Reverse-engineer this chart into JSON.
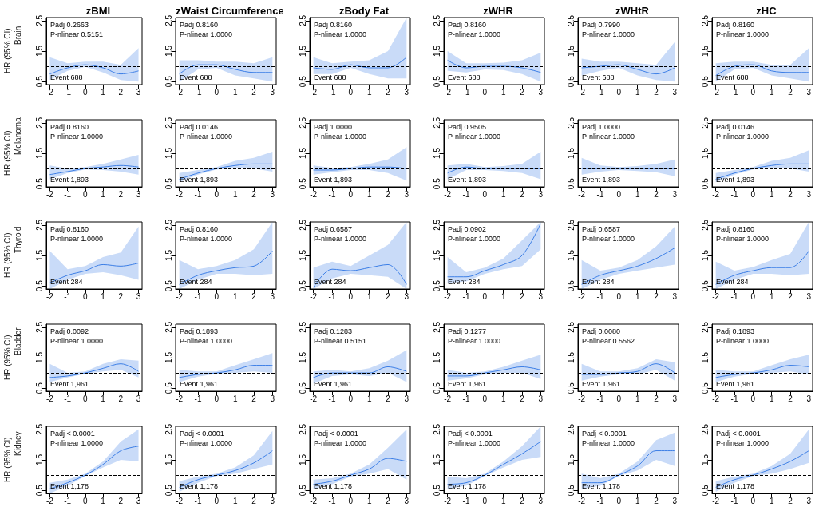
{
  "chart_data": [
    {
      "type": "line",
      "title": "zBMI",
      "ylabel": "HR (95% CI)",
      "subtitle": "Brain",
      "x": [
        -2,
        -1,
        0,
        1,
        2,
        3
      ],
      "series": [
        {
          "color": "#3d7fe6",
          "values": [
            0.75,
            0.95,
            1.05,
            0.95,
            0.75,
            0.85
          ],
          "lower": [
            0.55,
            0.85,
            0.98,
            0.8,
            0.55,
            0.5
          ],
          "upper": [
            1.3,
            1.1,
            1.15,
            1.15,
            1.05,
            1.6
          ]
        }
      ],
      "xlim": [
        -2.2,
        3.2
      ],
      "xticks": [
        -2,
        -1,
        0,
        1,
        2,
        3
      ],
      "ylim": [
        0.4,
        2.6
      ],
      "yticks": [
        0.5,
        1.5,
        2.5
      ],
      "ref_lines": [
        {
          "axis": "y",
          "value": 1,
          "line_style": "dashed",
          "color": "#000000"
        }
      ],
      "annotations": [
        "Padj 0.2663",
        "P-nlinear 0.5151",
        "Event 688"
      ]
    },
    {
      "type": "line",
      "title": "zWaist Circumference",
      "x": [
        -2,
        -1,
        0,
        1,
        2,
        3
      ],
      "series": [
        {
          "color": "#3d7fe6",
          "values": [
            0.75,
            1.05,
            1.05,
            0.9,
            0.8,
            0.8
          ],
          "lower": [
            0.5,
            0.9,
            0.95,
            0.7,
            0.6,
            0.5
          ],
          "upper": [
            1.2,
            1.2,
            1.15,
            1.15,
            1.1,
            1.3
          ]
        }
      ],
      "xlim": [
        -2.2,
        3.2
      ],
      "xticks": [
        -2,
        -1,
        0,
        1,
        2,
        3
      ],
      "ylim": [
        0.4,
        2.6
      ],
      "yticks": [
        0.5,
        1.5,
        2.5
      ],
      "ref_lines": [
        {
          "axis": "y",
          "value": 1,
          "line_style": "dashed",
          "color": "#000000"
        }
      ],
      "annotations": [
        "Padj 0.8160",
        "P-nlinear 1.0000",
        "Event 688"
      ]
    },
    {
      "type": "line",
      "title": "zBody Fat",
      "x": [
        -2,
        -1,
        0,
        1,
        2,
        3
      ],
      "series": [
        {
          "color": "#3d7fe6",
          "values": [
            0.95,
            0.9,
            1.05,
            0.95,
            0.95,
            1.3
          ],
          "lower": [
            0.75,
            0.75,
            0.95,
            0.75,
            0.6,
            0.6
          ],
          "upper": [
            1.3,
            1.1,
            1.15,
            1.2,
            1.5,
            2.6
          ]
        }
      ],
      "xlim": [
        -2.2,
        3.2
      ],
      "xticks": [
        -2,
        -1,
        0,
        1,
        2,
        3
      ],
      "ylim": [
        0.4,
        2.6
      ],
      "yticks": [
        0.5,
        1.5,
        2.5
      ],
      "ref_lines": [
        {
          "axis": "y",
          "value": 1,
          "line_style": "dashed",
          "color": "#000000"
        }
      ],
      "annotations": [
        "Padj 0.8160",
        "P-nlinear 1.0000",
        "Event 688"
      ]
    },
    {
      "type": "line",
      "title": "zWHR",
      "x": [
        -2,
        -1,
        0,
        1,
        2,
        3
      ],
      "series": [
        {
          "color": "#3d7fe6",
          "values": [
            1.2,
            0.95,
            1.0,
            1.0,
            0.95,
            0.8
          ],
          "lower": [
            0.85,
            0.8,
            0.9,
            0.88,
            0.75,
            0.5
          ],
          "upper": [
            1.5,
            1.1,
            1.1,
            1.12,
            1.2,
            1.45
          ]
        }
      ],
      "xlim": [
        -2.2,
        3.2
      ],
      "xticks": [
        -2,
        -1,
        0,
        1,
        2,
        3
      ],
      "ylim": [
        0.4,
        2.6
      ],
      "yticks": [
        0.5,
        1.5,
        2.5
      ],
      "ref_lines": [
        {
          "axis": "y",
          "value": 1,
          "line_style": "dashed",
          "color": "#000000"
        }
      ],
      "annotations": [
        "Padj 0.8160",
        "P-nlinear 1.0000",
        "Event 688"
      ]
    },
    {
      "type": "line",
      "title": "zWHtR",
      "x": [
        -2,
        -1,
        0,
        1,
        2,
        3
      ],
      "series": [
        {
          "color": "#3d7fe6",
          "values": [
            0.95,
            1.0,
            1.05,
            0.9,
            0.75,
            0.95
          ],
          "lower": [
            0.7,
            0.85,
            0.95,
            0.7,
            0.55,
            0.5
          ],
          "upper": [
            1.25,
            1.15,
            1.15,
            1.1,
            1.05,
            1.8
          ]
        }
      ],
      "xlim": [
        -2.2,
        3.2
      ],
      "xticks": [
        -2,
        -1,
        0,
        1,
        2,
        3
      ],
      "ylim": [
        0.4,
        2.6
      ],
      "yticks": [
        0.5,
        1.5,
        2.5
      ],
      "ref_lines": [
        {
          "axis": "y",
          "value": 1,
          "line_style": "dashed",
          "color": "#000000"
        }
      ],
      "annotations": [
        "Padj 0.7990",
        "P-nlinear 1.0000",
        "Event 688"
      ]
    },
    {
      "type": "line",
      "title": "zHC",
      "x": [
        -2,
        -1,
        0,
        1,
        2,
        3
      ],
      "series": [
        {
          "color": "#3d7fe6",
          "values": [
            0.7,
            1.0,
            1.05,
            0.85,
            0.8,
            0.8
          ],
          "lower": [
            0.5,
            0.9,
            0.95,
            0.7,
            0.6,
            0.5
          ],
          "upper": [
            1.1,
            1.15,
            1.15,
            1.05,
            1.05,
            1.6
          ]
        }
      ],
      "xlim": [
        -2.2,
        3.2
      ],
      "xticks": [
        -2,
        -1,
        0,
        1,
        2,
        3
      ],
      "ylim": [
        0.4,
        2.6
      ],
      "yticks": [
        0.5,
        1.5,
        2.5
      ],
      "ref_lines": [
        {
          "axis": "y",
          "value": 1,
          "line_style": "dashed",
          "color": "#000000"
        }
      ],
      "annotations": [
        "Padj 0.8160",
        "P-nlinear 1.0000",
        "Event 688"
      ]
    },
    {
      "type": "line",
      "ylabel": "HR (95% CI)",
      "subtitle": "Melanoma",
      "x": [
        -2,
        -1,
        0,
        1,
        2,
        3
      ],
      "series": [
        {
          "color": "#3d7fe6",
          "values": [
            0.8,
            0.9,
            1.0,
            1.05,
            1.1,
            1.05
          ],
          "lower": [
            0.65,
            0.85,
            0.97,
            0.95,
            0.9,
            0.8
          ],
          "upper": [
            1.1,
            1.0,
            1.05,
            1.15,
            1.3,
            1.45
          ]
        }
      ],
      "xlim": [
        -2.2,
        3.2
      ],
      "xticks": [
        -2,
        -1,
        0,
        1,
        2,
        3
      ],
      "ylim": [
        0.4,
        2.6
      ],
      "yticks": [
        0.5,
        1.5,
        2.5
      ],
      "ref_lines": [
        {
          "axis": "y",
          "value": 1,
          "line_style": "dashed",
          "color": "#000000"
        }
      ],
      "annotations": [
        "Padj 0.8160",
        "P-nlinear 1.0000",
        "Event 1,893"
      ]
    },
    {
      "type": "line",
      "x": [
        -2,
        -1,
        0,
        1,
        2,
        3
      ],
      "series": [
        {
          "color": "#3d7fe6",
          "values": [
            0.65,
            0.85,
            1.0,
            1.1,
            1.15,
            1.15
          ],
          "lower": [
            0.55,
            0.8,
            0.97,
            1.0,
            1.0,
            0.9
          ],
          "upper": [
            0.85,
            0.95,
            1.05,
            1.25,
            1.35,
            1.55
          ]
        }
      ],
      "xlim": [
        -2.2,
        3.2
      ],
      "xticks": [
        -2,
        -1,
        0,
        1,
        2,
        3
      ],
      "ylim": [
        0.4,
        2.6
      ],
      "yticks": [
        0.5,
        1.5,
        2.5
      ],
      "ref_lines": [
        {
          "axis": "y",
          "value": 1,
          "line_style": "dashed",
          "color": "#000000"
        }
      ],
      "annotations": [
        "Padj 0.0146",
        "P-nlinear 1.0000",
        "Event 1,893"
      ]
    },
    {
      "type": "line",
      "x": [
        -2,
        -1,
        0,
        1,
        2,
        3
      ],
      "series": [
        {
          "color": "#3d7fe6",
          "values": [
            0.95,
            0.95,
            1.0,
            1.05,
            1.05,
            1.0
          ],
          "lower": [
            0.8,
            0.88,
            0.95,
            0.95,
            0.85,
            0.6
          ],
          "upper": [
            1.1,
            1.02,
            1.05,
            1.15,
            1.3,
            1.7
          ]
        }
      ],
      "xlim": [
        -2.2,
        3.2
      ],
      "xticks": [
        -2,
        -1,
        0,
        1,
        2,
        3
      ],
      "ylim": [
        0.4,
        2.6
      ],
      "yticks": [
        0.5,
        1.5,
        2.5
      ],
      "ref_lines": [
        {
          "axis": "y",
          "value": 1,
          "line_style": "dashed",
          "color": "#000000"
        }
      ],
      "annotations": [
        "Padj 1.0000",
        "P-nlinear 1.0000",
        "Event 1,893"
      ]
    },
    {
      "type": "line",
      "x": [
        -2,
        -1,
        0,
        1,
        2,
        3
      ],
      "series": [
        {
          "color": "#3d7fe6",
          "values": [
            0.85,
            1.05,
            1.0,
            1.0,
            1.0,
            1.0
          ],
          "lower": [
            0.65,
            0.95,
            0.95,
            0.92,
            0.85,
            0.65
          ],
          "upper": [
            1.1,
            1.15,
            1.05,
            1.08,
            1.15,
            1.55
          ]
        }
      ],
      "xlim": [
        -2.2,
        3.2
      ],
      "xticks": [
        -2,
        -1,
        0,
        1,
        2,
        3
      ],
      "ylim": [
        0.4,
        2.6
      ],
      "yticks": [
        0.5,
        1.5,
        2.5
      ],
      "ref_lines": [
        {
          "axis": "y",
          "value": 1,
          "line_style": "dashed",
          "color": "#000000"
        }
      ],
      "annotations": [
        "Padj 0.9505",
        "P-nlinear 1.0000",
        "Event 1,893"
      ]
    },
    {
      "type": "line",
      "x": [
        -2,
        -1,
        0,
        1,
        2,
        3
      ],
      "series": [
        {
          "color": "#3d7fe6",
          "values": [
            1.0,
            1.0,
            1.0,
            1.0,
            1.0,
            1.0
          ],
          "lower": [
            0.8,
            0.9,
            0.95,
            0.92,
            0.88,
            0.75
          ],
          "upper": [
            1.35,
            1.1,
            1.05,
            1.08,
            1.15,
            1.3
          ]
        }
      ],
      "xlim": [
        -2.2,
        3.2
      ],
      "xticks": [
        -2,
        -1,
        0,
        1,
        2,
        3
      ],
      "ylim": [
        0.4,
        2.6
      ],
      "yticks": [
        0.5,
        1.5,
        2.5
      ],
      "ref_lines": [
        {
          "axis": "y",
          "value": 1,
          "line_style": "dashed",
          "color": "#000000"
        }
      ],
      "annotations": [
        "Padj 1.0000",
        "P-nlinear 1.0000",
        "Event 1,893"
      ]
    },
    {
      "type": "line",
      "x": [
        -2,
        -1,
        0,
        1,
        2,
        3
      ],
      "series": [
        {
          "color": "#3d7fe6",
          "values": [
            0.65,
            0.85,
            1.0,
            1.1,
            1.15,
            1.15
          ],
          "lower": [
            0.55,
            0.8,
            0.97,
            1.0,
            1.0,
            0.9
          ],
          "upper": [
            0.85,
            0.95,
            1.05,
            1.25,
            1.35,
            1.6
          ]
        }
      ],
      "xlim": [
        -2.2,
        3.2
      ],
      "xticks": [
        -2,
        -1,
        0,
        1,
        2,
        3
      ],
      "ylim": [
        0.4,
        2.6
      ],
      "yticks": [
        0.5,
        1.5,
        2.5
      ],
      "ref_lines": [
        {
          "axis": "y",
          "value": 1,
          "line_style": "dashed",
          "color": "#000000"
        }
      ],
      "annotations": [
        "Padj 0.0146",
        "P-nlinear 1.0000",
        "Event 1,893"
      ]
    },
    {
      "type": "line",
      "ylabel": "HR (95% CI)",
      "subtitle": "Thyroid",
      "x": [
        -2,
        -1,
        0,
        1,
        2,
        3
      ],
      "series": [
        {
          "color": "#3d7fe6",
          "values": [
            0.6,
            0.85,
            1.0,
            1.2,
            1.15,
            1.25
          ],
          "lower": [
            0.4,
            0.7,
            0.9,
            0.95,
            0.85,
            0.7
          ],
          "upper": [
            1.65,
            1.05,
            1.15,
            1.45,
            1.6,
            2.45
          ]
        }
      ],
      "xlim": [
        -2.2,
        3.2
      ],
      "xticks": [
        -2,
        -1,
        0,
        1,
        2,
        3
      ],
      "ylim": [
        0.4,
        2.6
      ],
      "yticks": [
        0.5,
        1.5,
        2.5
      ],
      "ref_lines": [
        {
          "axis": "y",
          "value": 1,
          "line_style": "dashed",
          "color": "#000000"
        }
      ],
      "annotations": [
        "Padj 0.8160",
        "P-nlinear 1.0000",
        "Event 284"
      ]
    },
    {
      "type": "line",
      "x": [
        -2,
        -1,
        0,
        1,
        2,
        3
      ],
      "series": [
        {
          "color": "#3d7fe6",
          "values": [
            0.55,
            0.85,
            1.0,
            1.1,
            1.15,
            1.65
          ],
          "lower": [
            0.4,
            0.7,
            0.9,
            0.9,
            0.85,
            0.9
          ],
          "upper": [
            1.35,
            1.05,
            1.15,
            1.35,
            1.7,
            2.6
          ]
        }
      ],
      "xlim": [
        -2.2,
        3.2
      ],
      "xticks": [
        -2,
        -1,
        0,
        1,
        2,
        3
      ],
      "ylim": [
        0.4,
        2.6
      ],
      "yticks": [
        0.5,
        1.5,
        2.5
      ],
      "ref_lines": [
        {
          "axis": "y",
          "value": 1,
          "line_style": "dashed",
          "color": "#000000"
        }
      ],
      "annotations": [
        "Padj 0.8160",
        "P-nlinear 1.0000",
        "Event 284"
      ]
    },
    {
      "type": "line",
      "x": [
        -2,
        -1,
        0,
        1,
        2,
        3
      ],
      "series": [
        {
          "color": "#3d7fe6",
          "values": [
            0.45,
            1.05,
            1.0,
            1.1,
            1.2,
            0.55
          ],
          "lower": [
            0.4,
            0.75,
            0.9,
            0.85,
            0.8,
            0.4
          ],
          "upper": [
            1.1,
            1.3,
            1.15,
            1.5,
            1.85,
            2.6
          ]
        }
      ],
      "xlim": [
        -2.2,
        3.2
      ],
      "xticks": [
        -2,
        -1,
        0,
        1,
        2,
        3
      ],
      "ylim": [
        0.4,
        2.6
      ],
      "yticks": [
        0.5,
        1.5,
        2.5
      ],
      "ref_lines": [
        {
          "axis": "y",
          "value": 1,
          "line_style": "dashed",
          "color": "#000000"
        }
      ],
      "annotations": [
        "Padj 0.6587",
        "P-nlinear 1.0000",
        "Event 284"
      ]
    },
    {
      "type": "line",
      "x": [
        -2,
        -1,
        0,
        1,
        2,
        3
      ],
      "series": [
        {
          "color": "#3d7fe6",
          "values": [
            0.8,
            0.8,
            1.0,
            1.2,
            1.5,
            2.55
          ],
          "lower": [
            0.6,
            0.65,
            0.9,
            1.05,
            1.15,
            1.7
          ],
          "upper": [
            1.45,
            0.95,
            1.1,
            1.4,
            2.0,
            2.6
          ]
        }
      ],
      "xlim": [
        -2.2,
        3.2
      ],
      "xticks": [
        -2,
        -1,
        0,
        1,
        2,
        3
      ],
      "ylim": [
        0.4,
        2.6
      ],
      "yticks": [
        0.5,
        1.5,
        2.5
      ],
      "ref_lines": [
        {
          "axis": "y",
          "value": 1,
          "line_style": "dashed",
          "color": "#000000"
        }
      ],
      "annotations": [
        "Padj 0.0902",
        "P-nlinear 1.0000",
        "Event 284"
      ]
    },
    {
      "type": "line",
      "x": [
        -2,
        -1,
        0,
        1,
        2,
        3
      ],
      "series": [
        {
          "color": "#3d7fe6",
          "values": [
            0.55,
            0.85,
            1.0,
            1.15,
            1.4,
            1.75
          ],
          "lower": [
            0.4,
            0.7,
            0.9,
            1.0,
            1.1,
            1.2
          ],
          "upper": [
            1.35,
            1.0,
            1.1,
            1.35,
            1.8,
            2.45
          ]
        }
      ],
      "xlim": [
        -2.2,
        3.2
      ],
      "xticks": [
        -2,
        -1,
        0,
        1,
        2,
        3
      ],
      "ylim": [
        0.4,
        2.6
      ],
      "yticks": [
        0.5,
        1.5,
        2.5
      ],
      "ref_lines": [
        {
          "axis": "y",
          "value": 1,
          "line_style": "dashed",
          "color": "#000000"
        }
      ],
      "annotations": [
        "Padj 0.6587",
        "P-nlinear 1.0000",
        "Event 284"
      ]
    },
    {
      "type": "line",
      "x": [
        -2,
        -1,
        0,
        1,
        2,
        3
      ],
      "series": [
        {
          "color": "#3d7fe6",
          "values": [
            0.55,
            0.85,
            1.0,
            1.1,
            1.1,
            1.65
          ],
          "lower": [
            0.4,
            0.7,
            0.9,
            0.9,
            0.85,
            0.9
          ],
          "upper": [
            1.3,
            1.0,
            1.12,
            1.35,
            1.55,
            2.6
          ]
        }
      ],
      "xlim": [
        -2.2,
        3.2
      ],
      "xticks": [
        -2,
        -1,
        0,
        1,
        2,
        3
      ],
      "ylim": [
        0.4,
        2.6
      ],
      "yticks": [
        0.5,
        1.5,
        2.5
      ],
      "ref_lines": [
        {
          "axis": "y",
          "value": 1,
          "line_style": "dashed",
          "color": "#000000"
        }
      ],
      "annotations": [
        "Padj 0.8160",
        "P-nlinear 1.0000",
        "Event 284"
      ]
    },
    {
      "type": "line",
      "ylabel": "HR (95% CI)",
      "subtitle": "Bladder",
      "x": [
        -2,
        -1,
        0,
        1,
        2,
        3
      ],
      "series": [
        {
          "color": "#3d7fe6",
          "values": [
            0.85,
            0.9,
            1.0,
            1.15,
            1.3,
            1.05
          ],
          "lower": [
            0.7,
            0.85,
            0.97,
            1.05,
            1.1,
            0.85
          ],
          "upper": [
            1.3,
            1.0,
            1.05,
            1.3,
            1.45,
            1.4
          ]
        }
      ],
      "xlim": [
        -2.2,
        3.2
      ],
      "xticks": [
        -2,
        -1,
        0,
        1,
        2,
        3
      ],
      "ylim": [
        0.4,
        2.6
      ],
      "yticks": [
        0.5,
        1.5,
        2.5
      ],
      "ref_lines": [
        {
          "axis": "y",
          "value": 1,
          "line_style": "dashed",
          "color": "#000000"
        }
      ],
      "annotations": [
        "Padj 0.0092",
        "P-nlinear 1.0000",
        "Event 1,961"
      ]
    },
    {
      "type": "line",
      "x": [
        -2,
        -1,
        0,
        1,
        2,
        3
      ],
      "series": [
        {
          "color": "#3d7fe6",
          "values": [
            0.85,
            0.95,
            1.0,
            1.1,
            1.25,
            1.25
          ],
          "lower": [
            0.7,
            0.88,
            0.97,
            1.0,
            1.05,
            1.0
          ],
          "upper": [
            1.1,
            1.05,
            1.05,
            1.25,
            1.45,
            1.65
          ]
        }
      ],
      "xlim": [
        -2.2,
        3.2
      ],
      "xticks": [
        -2,
        -1,
        0,
        1,
        2,
        3
      ],
      "ylim": [
        0.4,
        2.6
      ],
      "yticks": [
        0.5,
        1.5,
        2.5
      ],
      "ref_lines": [
        {
          "axis": "y",
          "value": 1,
          "line_style": "dashed",
          "color": "#000000"
        }
      ],
      "annotations": [
        "Padj 0.1893",
        "P-nlinear 1.0000",
        "Event 1,961"
      ]
    },
    {
      "type": "line",
      "x": [
        -2,
        -1,
        0,
        1,
        2,
        3
      ],
      "series": [
        {
          "color": "#3d7fe6",
          "values": [
            0.85,
            1.0,
            1.0,
            1.0,
            1.2,
            1.05
          ],
          "lower": [
            0.65,
            0.9,
            0.95,
            0.9,
            1.0,
            0.7
          ],
          "upper": [
            1.05,
            1.1,
            1.05,
            1.15,
            1.4,
            1.75
          ]
        }
      ],
      "xlim": [
        -2.2,
        3.2
      ],
      "xticks": [
        -2,
        -1,
        0,
        1,
        2,
        3
      ],
      "ylim": [
        0.4,
        2.6
      ],
      "yticks": [
        0.5,
        1.5,
        2.5
      ],
      "ref_lines": [
        {
          "axis": "y",
          "value": 1,
          "line_style": "dashed",
          "color": "#000000"
        }
      ],
      "annotations": [
        "Padj 0.1283",
        "P-nlinear 0.5151",
        "Event 1,961"
      ]
    },
    {
      "type": "line",
      "x": [
        -2,
        -1,
        0,
        1,
        2,
        3
      ],
      "series": [
        {
          "color": "#3d7fe6",
          "values": [
            0.9,
            0.9,
            1.0,
            1.1,
            1.2,
            1.1
          ],
          "lower": [
            0.75,
            0.82,
            0.95,
            1.0,
            1.0,
            0.8
          ],
          "upper": [
            1.1,
            1.0,
            1.05,
            1.2,
            1.4,
            1.6
          ]
        }
      ],
      "xlim": [
        -2.2,
        3.2
      ],
      "xticks": [
        -2,
        -1,
        0,
        1,
        2,
        3
      ],
      "ylim": [
        0.4,
        2.6
      ],
      "yticks": [
        0.5,
        1.5,
        2.5
      ],
      "ref_lines": [
        {
          "axis": "y",
          "value": 1,
          "line_style": "dashed",
          "color": "#000000"
        }
      ],
      "annotations": [
        "Padj 0.1277",
        "P-nlinear 1.0000",
        "Event 1,961"
      ]
    },
    {
      "type": "line",
      "x": [
        -2,
        -1,
        0,
        1,
        2,
        3
      ],
      "series": [
        {
          "color": "#3d7fe6",
          "values": [
            0.95,
            0.95,
            1.0,
            1.05,
            1.3,
            1.0
          ],
          "lower": [
            0.75,
            0.88,
            0.95,
            0.95,
            1.1,
            0.75
          ],
          "upper": [
            1.3,
            1.05,
            1.05,
            1.15,
            1.45,
            1.35
          ]
        }
      ],
      "xlim": [
        -2.2,
        3.2
      ],
      "xticks": [
        -2,
        -1,
        0,
        1,
        2,
        3
      ],
      "ylim": [
        0.4,
        2.6
      ],
      "yticks": [
        0.5,
        1.5,
        2.5
      ],
      "ref_lines": [
        {
          "axis": "y",
          "value": 1,
          "line_style": "dashed",
          "color": "#000000"
        }
      ],
      "annotations": [
        "Padj 0.0080",
        "P-nlinear 0.5562",
        "Event 1,961"
      ]
    },
    {
      "type": "line",
      "x": [
        -2,
        -1,
        0,
        1,
        2,
        3
      ],
      "series": [
        {
          "color": "#3d7fe6",
          "values": [
            0.85,
            0.95,
            1.0,
            1.1,
            1.25,
            1.2
          ],
          "lower": [
            0.7,
            0.88,
            0.97,
            1.0,
            1.05,
            0.95
          ],
          "upper": [
            1.1,
            1.05,
            1.05,
            1.25,
            1.45,
            1.6
          ]
        }
      ],
      "xlim": [
        -2.2,
        3.2
      ],
      "xticks": [
        -2,
        -1,
        0,
        1,
        2,
        3
      ],
      "ylim": [
        0.4,
        2.6
      ],
      "yticks": [
        0.5,
        1.5,
        2.5
      ],
      "ref_lines": [
        {
          "axis": "y",
          "value": 1,
          "line_style": "dashed",
          "color": "#000000"
        }
      ],
      "annotations": [
        "Padj 0.1893",
        "P-nlinear 1.0000",
        "Event 1,961"
      ]
    },
    {
      "type": "line",
      "ylabel": "HR (95% CI)",
      "subtitle": "Kidney",
      "x": [
        -2,
        -1,
        0,
        1,
        2,
        3
      ],
      "series": [
        {
          "color": "#3d7fe6",
          "values": [
            0.55,
            0.75,
            1.0,
            1.35,
            1.8,
            1.95
          ],
          "lower": [
            0.4,
            0.65,
            0.97,
            1.25,
            1.5,
            1.45
          ],
          "upper": [
            0.75,
            0.85,
            1.05,
            1.45,
            2.1,
            2.5
          ]
        }
      ],
      "xlim": [
        -2.2,
        3.2
      ],
      "xticks": [
        -2,
        -1,
        0,
        1,
        2,
        3
      ],
      "ylim": [
        0.4,
        2.6
      ],
      "yticks": [
        0.5,
        1.5,
        2.5
      ],
      "ref_lines": [
        {
          "axis": "y",
          "value": 1,
          "line_style": "dashed",
          "color": "#000000"
        }
      ],
      "annotations": [
        "Padj < 0.0001",
        "P-nlinear 1.0000",
        "Event 1,178"
      ]
    },
    {
      "type": "line",
      "x": [
        -2,
        -1,
        0,
        1,
        2,
        3
      ],
      "series": [
        {
          "color": "#3d7fe6",
          "values": [
            0.6,
            0.85,
            1.0,
            1.15,
            1.4,
            1.8
          ],
          "lower": [
            0.45,
            0.75,
            0.97,
            1.05,
            1.2,
            1.35
          ],
          "upper": [
            0.8,
            0.95,
            1.05,
            1.25,
            1.65,
            2.45
          ]
        }
      ],
      "xlim": [
        -2.2,
        3.2
      ],
      "xticks": [
        -2,
        -1,
        0,
        1,
        2,
        3
      ],
      "ylim": [
        0.4,
        2.6
      ],
      "yticks": [
        0.5,
        1.5,
        2.5
      ],
      "ref_lines": [
        {
          "axis": "y",
          "value": 1,
          "line_style": "dashed",
          "color": "#000000"
        }
      ],
      "annotations": [
        "Padj < 0.0001",
        "P-nlinear 1.0000",
        "Event 1,178"
      ]
    },
    {
      "type": "line",
      "x": [
        -2,
        -1,
        0,
        1,
        2,
        3
      ],
      "series": [
        {
          "color": "#3d7fe6",
          "values": [
            0.7,
            0.8,
            1.0,
            1.2,
            1.55,
            1.45
          ],
          "lower": [
            0.55,
            0.7,
            0.95,
            1.05,
            1.2,
            0.85
          ],
          "upper": [
            0.85,
            0.9,
            1.05,
            1.35,
            1.9,
            2.5
          ]
        }
      ],
      "xlim": [
        -2.2,
        3.2
      ],
      "xticks": [
        -2,
        -1,
        0,
        1,
        2,
        3
      ],
      "ylim": [
        0.4,
        2.6
      ],
      "yticks": [
        0.5,
        1.5,
        2.5
      ],
      "ref_lines": [
        {
          "axis": "y",
          "value": 1,
          "line_style": "dashed",
          "color": "#000000"
        }
      ],
      "annotations": [
        "Padj < 0.0001",
        "P-nlinear 1.0000",
        "Event 1,178"
      ]
    },
    {
      "type": "line",
      "x": [
        -2,
        -1,
        0,
        1,
        2,
        3
      ],
      "series": [
        {
          "color": "#3d7fe6",
          "values": [
            0.7,
            0.75,
            1.0,
            1.35,
            1.7,
            2.1
          ],
          "lower": [
            0.55,
            0.65,
            0.97,
            1.25,
            1.5,
            1.6
          ],
          "upper": [
            0.95,
            0.9,
            1.05,
            1.45,
            1.95,
            2.6
          ]
        }
      ],
      "xlim": [
        -2.2,
        3.2
      ],
      "xticks": [
        -2,
        -1,
        0,
        1,
        2,
        3
      ],
      "ylim": [
        0.4,
        2.6
      ],
      "yticks": [
        0.5,
        1.5,
        2.5
      ],
      "ref_lines": [
        {
          "axis": "y",
          "value": 1,
          "line_style": "dashed",
          "color": "#000000"
        }
      ],
      "annotations": [
        "Padj < 0.0001",
        "P-nlinear 1.0000",
        "Event 1,178"
      ]
    },
    {
      "type": "line",
      "x": [
        -2,
        -1,
        0,
        1,
        2,
        3
      ],
      "series": [
        {
          "color": "#3d7fe6",
          "values": [
            0.75,
            0.75,
            1.0,
            1.3,
            1.8,
            1.8
          ],
          "lower": [
            0.55,
            0.65,
            0.97,
            1.15,
            1.5,
            1.3
          ],
          "upper": [
            1.05,
            0.9,
            1.05,
            1.45,
            2.15,
            2.4
          ]
        }
      ],
      "xlim": [
        -2.2,
        3.2
      ],
      "xticks": [
        -2,
        -1,
        0,
        1,
        2,
        3
      ],
      "ylim": [
        0.4,
        2.6
      ],
      "yticks": [
        0.5,
        1.5,
        2.5
      ],
      "ref_lines": [
        {
          "axis": "y",
          "value": 1,
          "line_style": "dashed",
          "color": "#000000"
        }
      ],
      "annotations": [
        "Padj < 0.0001",
        "P-nlinear 1.0000",
        "Event 1,178"
      ]
    },
    {
      "type": "line",
      "x": [
        -2,
        -1,
        0,
        1,
        2,
        3
      ],
      "series": [
        {
          "color": "#3d7fe6",
          "values": [
            0.6,
            0.85,
            1.0,
            1.2,
            1.45,
            1.8
          ],
          "lower": [
            0.45,
            0.75,
            0.97,
            1.05,
            1.2,
            1.4
          ],
          "upper": [
            0.8,
            0.95,
            1.05,
            1.3,
            1.7,
            2.5
          ]
        }
      ],
      "xlim": [
        -2.2,
        3.2
      ],
      "xticks": [
        -2,
        -1,
        0,
        1,
        2,
        3
      ],
      "ylim": [
        0.4,
        2.6
      ],
      "yticks": [
        0.5,
        1.5,
        2.5
      ],
      "ref_lines": [
        {
          "axis": "y",
          "value": 1,
          "line_style": "dashed",
          "color": "#000000"
        }
      ],
      "annotations": [
        "Padj < 0.0001",
        "P-nlinear 1.0000",
        "Event 1,178"
      ]
    }
  ]
}
